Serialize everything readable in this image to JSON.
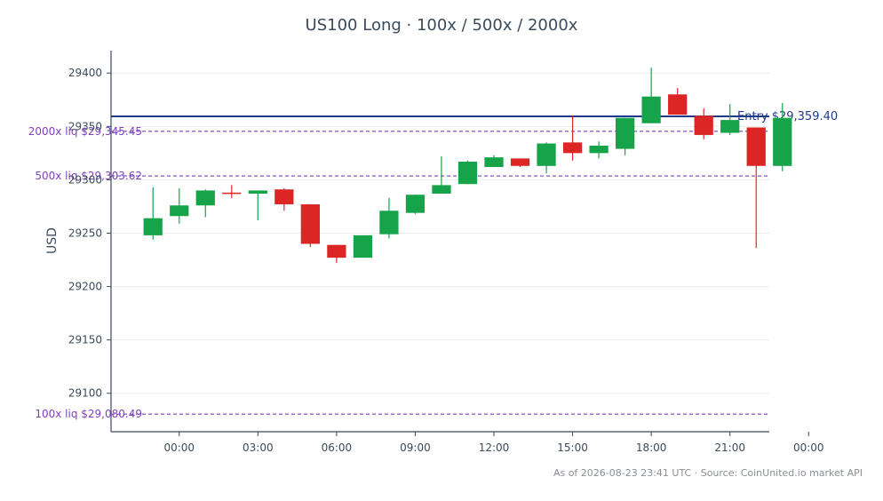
{
  "chart_data": {
    "type": "candlestick",
    "title": "US100 Long · 100x / 500x / 2000x",
    "ylabel": "USD",
    "xlabel": "",
    "ylim": [
      29064,
      29421
    ],
    "xlim": [
      -2.6,
      22.5
    ],
    "yticks": [
      29100,
      29150,
      29200,
      29250,
      29300,
      29350,
      29400
    ],
    "xticks": [
      {
        "pos": 0,
        "label": "00:00"
      },
      {
        "pos": 3,
        "label": "03:00"
      },
      {
        "pos": 6,
        "label": "06:00"
      },
      {
        "pos": 9,
        "label": "09:00"
      },
      {
        "pos": 12,
        "label": "12:00"
      },
      {
        "pos": 15,
        "label": "15:00"
      },
      {
        "pos": 18,
        "label": "18:00"
      },
      {
        "pos": 21,
        "label": "21:00"
      },
      {
        "pos": 24,
        "label": "00:00"
      }
    ],
    "grid": true,
    "up_color": "#16a34a",
    "down_color": "#dc2626",
    "candles": [
      {
        "t": -1,
        "o": 29248,
        "h": 29293,
        "l": 29244,
        "c": 29264
      },
      {
        "t": 0,
        "o": 29266,
        "h": 29292,
        "l": 29259,
        "c": 29276
      },
      {
        "t": 1,
        "o": 29276,
        "h": 29291,
        "l": 29265,
        "c": 29290
      },
      {
        "t": 2,
        "o": 29288,
        "h": 29295,
        "l": 29283,
        "c": 29287
      },
      {
        "t": 3,
        "o": 29287,
        "h": 29290,
        "l": 29262,
        "c": 29290
      },
      {
        "t": 4,
        "o": 29291,
        "h": 29292,
        "l": 29271,
        "c": 29277
      },
      {
        "t": 5,
        "o": 29277,
        "h": 29277,
        "l": 29237,
        "c": 29240
      },
      {
        "t": 6,
        "o": 29239,
        "h": 29239,
        "l": 29222,
        "c": 29227
      },
      {
        "t": 7,
        "o": 29227,
        "h": 29248,
        "l": 29227,
        "c": 29248
      },
      {
        "t": 8,
        "o": 29249,
        "h": 29283,
        "l": 29245,
        "c": 29271
      },
      {
        "t": 9,
        "o": 29269,
        "h": 29286,
        "l": 29268,
        "c": 29286
      },
      {
        "t": 10,
        "o": 29287,
        "h": 29322,
        "l": 29287,
        "c": 29295
      },
      {
        "t": 11,
        "o": 29296,
        "h": 29318,
        "l": 29296,
        "c": 29317
      },
      {
        "t": 12,
        "o": 29312,
        "h": 29323,
        "l": 29312,
        "c": 29321
      },
      {
        "t": 13,
        "o": 29320,
        "h": 29320,
        "l": 29312,
        "c": 29313
      },
      {
        "t": 14,
        "o": 29313,
        "h": 29335,
        "l": 29306,
        "c": 29334
      },
      {
        "t": 15,
        "o": 29335,
        "h": 29360,
        "l": 29318,
        "c": 29325
      },
      {
        "t": 16,
        "o": 29325,
        "h": 29336,
        "l": 29320,
        "c": 29332
      },
      {
        "t": 17,
        "o": 29329,
        "h": 29358,
        "l": 29323,
        "c": 29358
      },
      {
        "t": 18,
        "o": 29353,
        "h": 29405,
        "l": 29353,
        "c": 29378
      },
      {
        "t": 19,
        "o": 29380,
        "h": 29386,
        "l": 29361,
        "c": 29361
      },
      {
        "t": 20,
        "o": 29360,
        "h": 29367,
        "l": 29338,
        "c": 29342
      },
      {
        "t": 21,
        "o": 29344,
        "h": 29371,
        "l": 29342,
        "c": 29356
      },
      {
        "t": 22,
        "o": 29349,
        "h": 29349,
        "l": 29236,
        "c": 29313
      },
      {
        "t": 23,
        "o": 29313,
        "h": 29372,
        "l": 29308,
        "c": 29358
      }
    ],
    "levels": [
      {
        "name": "entry",
        "value": 29359.4,
        "label": "Entry $29,359.40",
        "color": "#1e3a8a",
        "style": "solid"
      },
      {
        "name": "liq-2000x",
        "value": 29345.45,
        "label": "2000x liq $29,345.45",
        "color": "#7e3fbf",
        "style": "dashed"
      },
      {
        "name": "liq-500x",
        "value": 29303.62,
        "label": "500x liq $29,303.62",
        "color": "#7e3fbf",
        "style": "dashed"
      },
      {
        "name": "liq-100x",
        "value": 29080.49,
        "label": "100x liq $29,080.49",
        "color": "#7e3fbf",
        "style": "dashed"
      }
    ]
  },
  "footer": {
    "note": "As of 2026-08-23 23:41 UTC · Source: CoinUnited.io market API"
  }
}
